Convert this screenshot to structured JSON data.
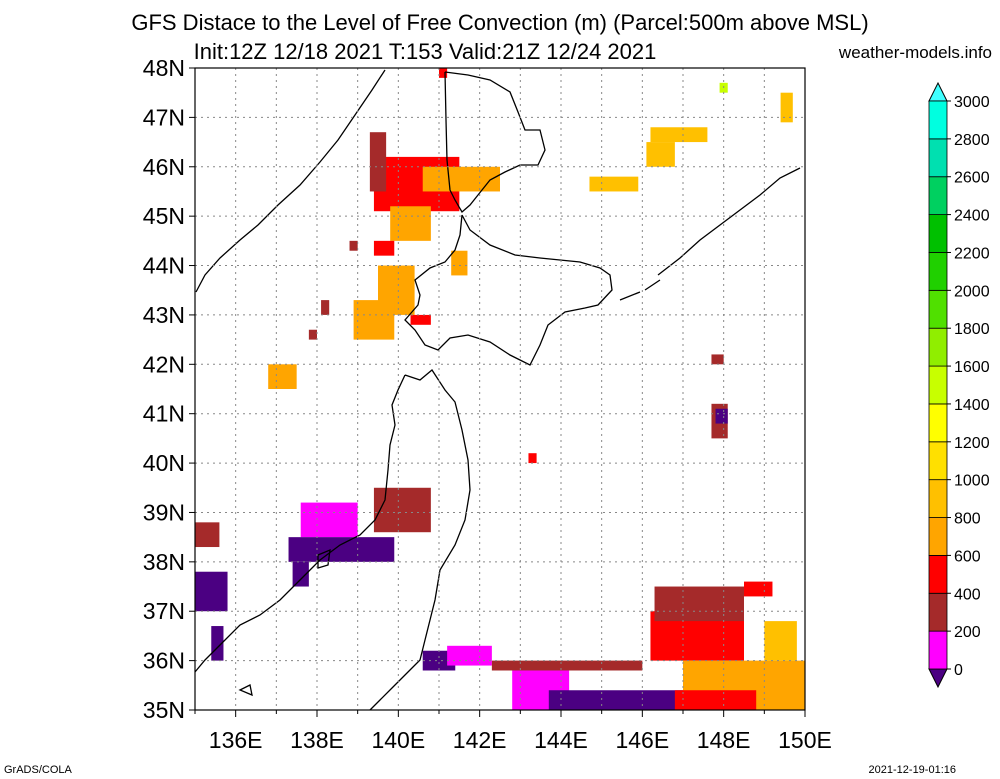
{
  "title_line1": "GFS Distace to the Level of Free Convection (m) (Parcel:500m above MSL)",
  "title_line2": "Init:12Z 12/18 2021 T:153 Valid:21Z 12/24 2021",
  "site": "weather-models.info",
  "footer_left": "GrADS/COLA",
  "footer_right": "2021-12-19-01:16",
  "map": {
    "lon_range": [
      135,
      150
    ],
    "lat_range": [
      35,
      48
    ],
    "lon_labels": [
      "136E",
      "138E",
      "140E",
      "142E",
      "144E",
      "146E",
      "148E",
      "150E"
    ],
    "lon_label_values": [
      136,
      138,
      140,
      142,
      144,
      146,
      148,
      150
    ],
    "lat_labels": [
      "35N",
      "36N",
      "37N",
      "38N",
      "39N",
      "40N",
      "41N",
      "42N",
      "43N",
      "44N",
      "45N",
      "46N",
      "47N",
      "48N"
    ],
    "lat_label_values": [
      35,
      36,
      37,
      38,
      39,
      40,
      41,
      42,
      43,
      44,
      45,
      46,
      47,
      48
    ],
    "grid": "dotted"
  },
  "colorbar": {
    "labels": [
      "0",
      "200",
      "400",
      "600",
      "800",
      "1000",
      "1200",
      "1400",
      "1600",
      "1800",
      "2000",
      "2200",
      "2400",
      "2600",
      "2800",
      "3000"
    ],
    "colors": [
      "#4b0082",
      "#ff00ff",
      "#a52a2a",
      "#ff0000",
      "#ffa500",
      "#ffc000",
      "#ffe000",
      "#ffff00",
      "#c8ff00",
      "#90ee00",
      "#50e000",
      "#20d000",
      "#00c000",
      "#00d060",
      "#00e0b0",
      "#00ffe0",
      "#40ffff"
    ],
    "arrow_bottom": "#4b0082",
    "arrow_top": "#40ffff"
  },
  "shaded_regions": [
    {
      "color": "#ff0000",
      "lon": [
        139.4,
        141.5
      ],
      "lat": [
        45.1,
        46.2
      ]
    },
    {
      "color": "#a52a2a",
      "lon": [
        139.3,
        139.7
      ],
      "lat": [
        45.5,
        46.7
      ]
    },
    {
      "color": "#ffa500",
      "lon": [
        140.6,
        142.5
      ],
      "lat": [
        45.5,
        46.0
      ]
    },
    {
      "color": "#ffa500",
      "lon": [
        139.8,
        140.8
      ],
      "lat": [
        44.5,
        45.2
      ]
    },
    {
      "color": "#a52a2a",
      "lon": [
        138.8,
        139.0
      ],
      "lat": [
        44.3,
        44.5
      ]
    },
    {
      "color": "#ff0000",
      "lon": [
        139.4,
        139.9
      ],
      "lat": [
        44.2,
        44.5
      ]
    },
    {
      "color": "#ffa500",
      "lon": [
        139.5,
        140.4
      ],
      "lat": [
        43.0,
        44.0
      ]
    },
    {
      "color": "#ffa500",
      "lon": [
        138.9,
        139.9
      ],
      "lat": [
        42.5,
        43.3
      ]
    },
    {
      "color": "#ff0000",
      "lon": [
        140.3,
        140.8
      ],
      "lat": [
        42.8,
        43.0
      ]
    },
    {
      "color": "#ffa500",
      "lon": [
        141.3,
        141.7
      ],
      "lat": [
        43.8,
        44.3
      ]
    },
    {
      "color": "#ff0000",
      "lon": [
        141.0,
        141.2
      ],
      "lat": [
        47.8,
        48.0
      ]
    },
    {
      "color": "#ffc000",
      "lon": [
        146.2,
        147.6
      ],
      "lat": [
        46.5,
        46.8
      ]
    },
    {
      "color": "#ffc000",
      "lon": [
        146.1,
        146.8
      ],
      "lat": [
        46.0,
        46.5
      ]
    },
    {
      "color": "#ffc000",
      "lon": [
        144.7,
        145.9
      ],
      "lat": [
        45.5,
        45.8
      ]
    },
    {
      "color": "#ffc000",
      "lon": [
        149.4,
        149.7
      ],
      "lat": [
        46.9,
        47.5
      ]
    },
    {
      "color": "#c8ff00",
      "lon": [
        147.9,
        148.1
      ],
      "lat": [
        47.5,
        47.7
      ]
    },
    {
      "color": "#a52a2a",
      "lon": [
        138.1,
        138.3
      ],
      "lat": [
        43.0,
        43.3
      ]
    },
    {
      "color": "#a52a2a",
      "lon": [
        137.8,
        138.0
      ],
      "lat": [
        42.5,
        42.7
      ]
    },
    {
      "color": "#ffa500",
      "lon": [
        136.8,
        137.5
      ],
      "lat": [
        41.5,
        42.0
      ]
    },
    {
      "color": "#ff0000",
      "lon": [
        143.2,
        143.4
      ],
      "lat": [
        40.0,
        40.2
      ]
    },
    {
      "color": "#a52a2a",
      "lon": [
        147.7,
        148.0
      ],
      "lat": [
        42.0,
        42.2
      ]
    },
    {
      "color": "#a52a2a",
      "lon": [
        147.7,
        148.1
      ],
      "lat": [
        40.5,
        41.2
      ]
    },
    {
      "color": "#4b0082",
      "lon": [
        147.8,
        148.1
      ],
      "lat": [
        40.8,
        41.1
      ]
    },
    {
      "color": "#a52a2a",
      "lon": [
        139.4,
        140.8
      ],
      "lat": [
        38.6,
        39.5
      ]
    },
    {
      "color": "#ff00ff",
      "lon": [
        137.6,
        139.0
      ],
      "lat": [
        38.5,
        39.2
      ]
    },
    {
      "color": "#4b0082",
      "lon": [
        137.3,
        139.9
      ],
      "lat": [
        38.0,
        38.5
      ]
    },
    {
      "color": "#4b0082",
      "lon": [
        137.4,
        137.8
      ],
      "lat": [
        37.5,
        38.0
      ]
    },
    {
      "color": "#a52a2a",
      "lon": [
        135.0,
        135.6
      ],
      "lat": [
        38.3,
        38.8
      ]
    },
    {
      "color": "#4b0082",
      "lon": [
        135.0,
        135.8
      ],
      "lat": [
        37.0,
        37.8
      ]
    },
    {
      "color": "#4b0082",
      "lon": [
        135.4,
        135.7
      ],
      "lat": [
        36.0,
        36.7
      ]
    },
    {
      "color": "#4b0082",
      "lon": [
        140.6,
        141.4
      ],
      "lat": [
        35.8,
        36.2
      ]
    },
    {
      "color": "#ff00ff",
      "lon": [
        141.2,
        142.3
      ],
      "lat": [
        35.9,
        36.3
      ]
    },
    {
      "color": "#a52a2a",
      "lon": [
        142.3,
        146.0
      ],
      "lat": [
        35.8,
        36.0
      ]
    },
    {
      "color": "#ff00ff",
      "lon": [
        142.8,
        144.2
      ],
      "lat": [
        35.0,
        35.8
      ]
    },
    {
      "color": "#4b0082",
      "lon": [
        143.7,
        147.0
      ],
      "lat": [
        35.0,
        35.4
      ]
    },
    {
      "color": "#ff0000",
      "lon": [
        146.2,
        148.5
      ],
      "lat": [
        36.0,
        37.0
      ]
    },
    {
      "color": "#a52a2a",
      "lon": [
        146.3,
        148.5
      ],
      "lat": [
        36.8,
        37.5
      ]
    },
    {
      "color": "#ff0000",
      "lon": [
        148.5,
        149.2
      ],
      "lat": [
        37.3,
        37.6
      ]
    },
    {
      "color": "#ffa500",
      "lon": [
        147.0,
        150.0
      ],
      "lat": [
        35.0,
        36.0
      ]
    },
    {
      "color": "#ff0000",
      "lon": [
        146.8,
        148.8
      ],
      "lat": [
        35.0,
        35.4
      ]
    },
    {
      "color": "#ffc000",
      "lon": [
        149.0,
        149.8
      ],
      "lat": [
        36.0,
        36.8
      ]
    }
  ]
}
